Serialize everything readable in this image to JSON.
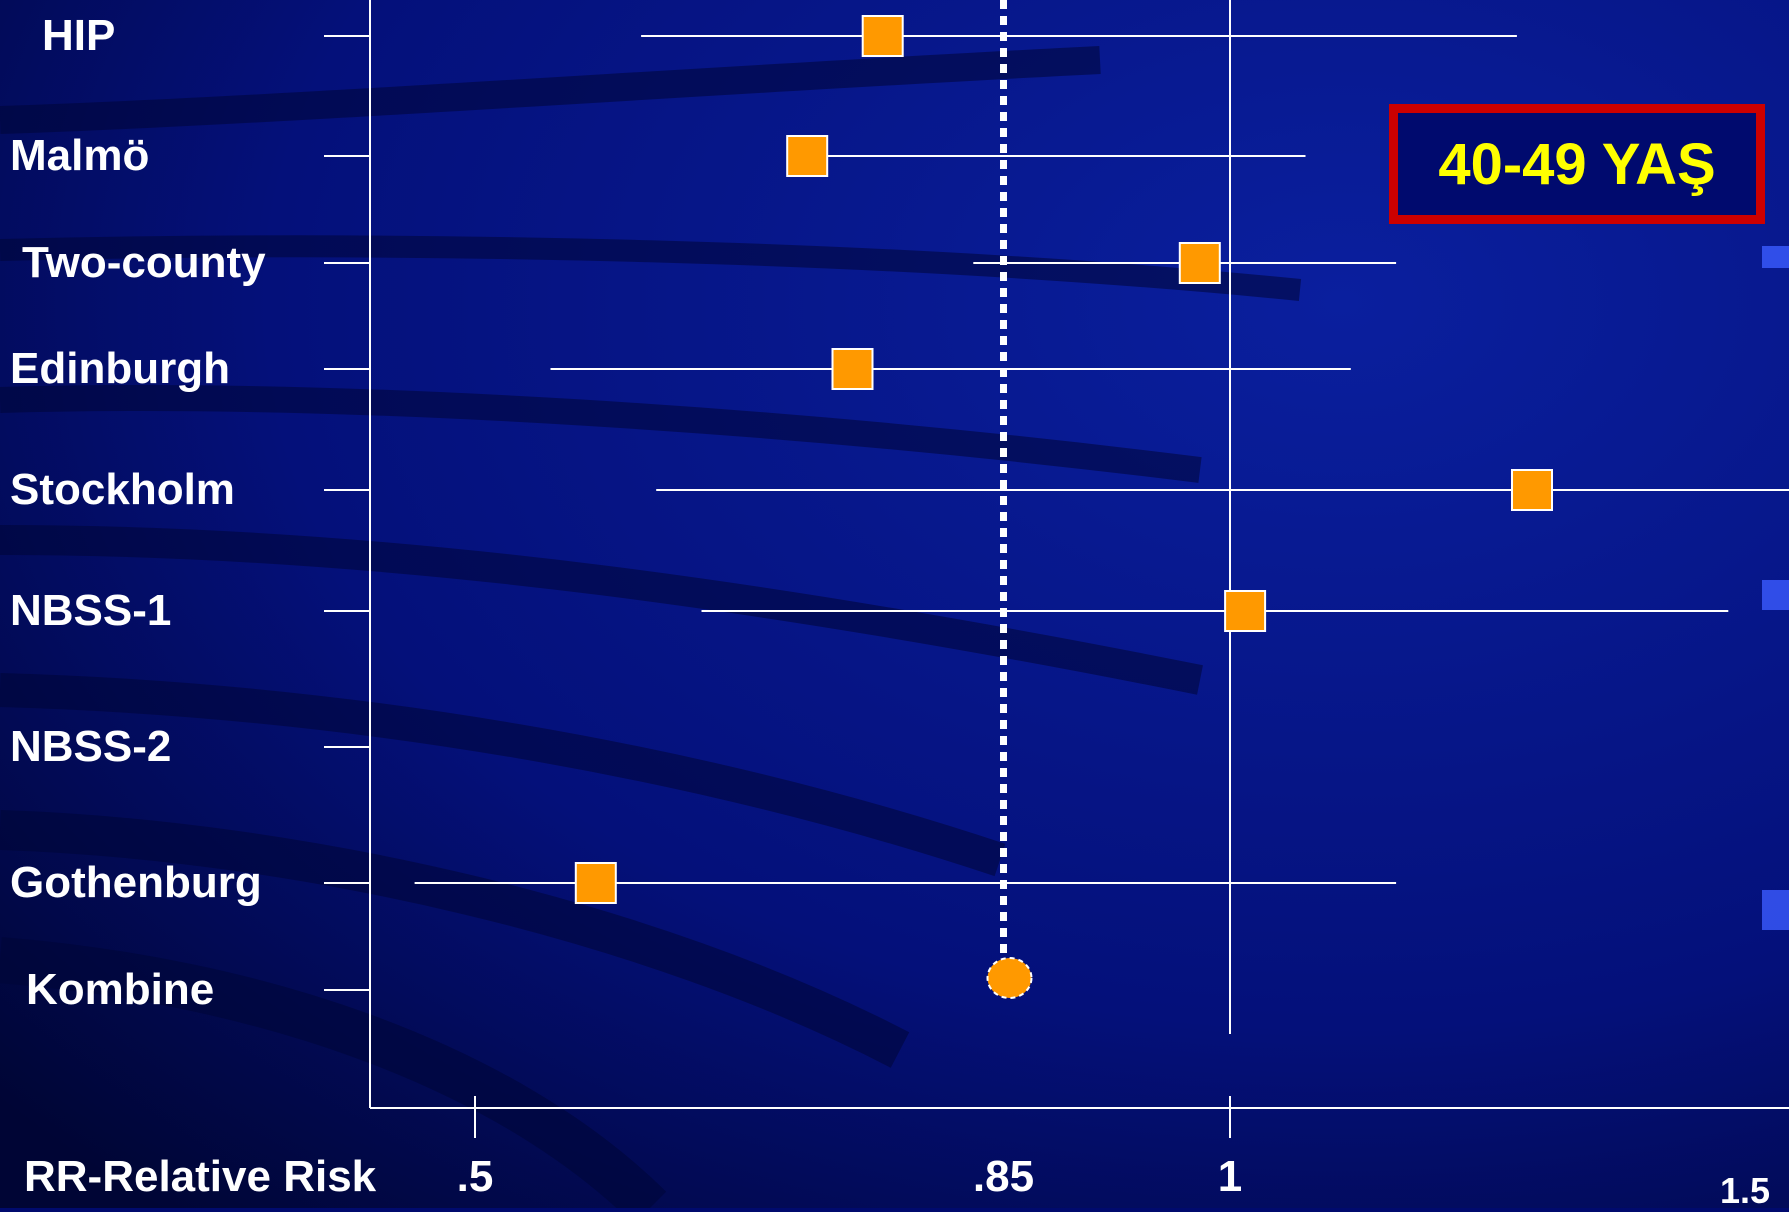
{
  "chart_data": {
    "type": "scatter",
    "subtype": "forest-plot",
    "badge": "40-49 YAŞ",
    "xlabel": "RR-Relative Risk",
    "reference_line": 0.85,
    "xticks": [
      {
        "value": 0.5,
        "label": ".5"
      },
      {
        "value": 0.85,
        "label": ".85"
      },
      {
        "value": 1,
        "label": "1"
      },
      {
        "value": 1.5,
        "label": "1.5"
      }
    ],
    "rows": [
      {
        "label": "HIP",
        "rr": 0.77,
        "ci_low": 0.61,
        "ci_high": 1.19
      },
      {
        "label": "Malmö",
        "rr": 0.72,
        "ci_low": 0.72,
        "ci_high": 1.05
      },
      {
        "label": "Two-county",
        "rr": 0.98,
        "ci_low": 0.83,
        "ci_high": 1.11
      },
      {
        "label": "Edinburgh",
        "rr": 0.75,
        "ci_low": 0.55,
        "ci_high": 1.08
      },
      {
        "label": "Stockholm",
        "rr": 1.2,
        "ci_low": 0.62,
        "ci_high": 1.41
      },
      {
        "label": "NBSS-1",
        "rr": 1.01,
        "ci_low": 0.65,
        "ci_high": 1.33
      },
      {
        "label": "NBSS-2",
        "rr": null,
        "ci_low": null,
        "ci_high": null
      },
      {
        "label": "Gothenburg",
        "rr": 0.58,
        "ci_low": 0.46,
        "ci_high": 1.11
      },
      {
        "label": "Kombine",
        "rr": 0.85,
        "ci_low": null,
        "ci_high": null,
        "combined": true
      }
    ],
    "colors": {
      "background": "#000a6e",
      "marker": "#ff9900",
      "lines": "#ffffff",
      "badge_border": "#cc0000",
      "badge_text": "#ffff00"
    }
  }
}
